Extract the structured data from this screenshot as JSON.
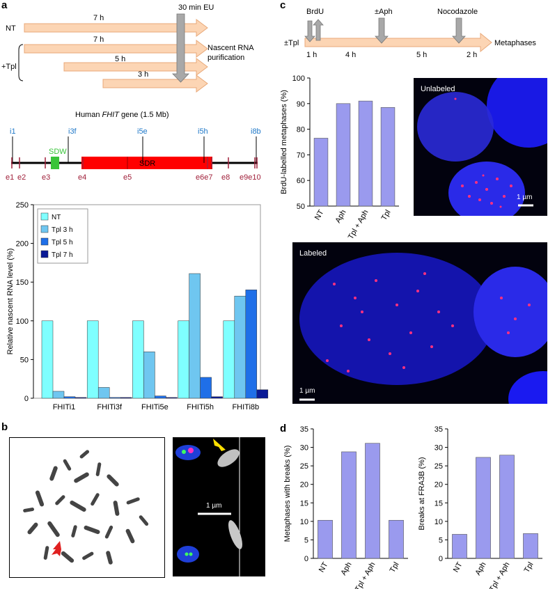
{
  "panel_labels": {
    "a": "a",
    "b": "b",
    "c": "c",
    "d": "d"
  },
  "panel_a": {
    "eu_label": "30 min EU",
    "row_labels": {
      "nt": "NT",
      "tpl": "+Tpl"
    },
    "arrow_times": [
      "7 h",
      "7 h",
      "5 h",
      "3 h"
    ],
    "purification": [
      "Nascent RNA",
      "purification"
    ],
    "gene_title_prefix": "Human ",
    "gene_title_italic": "FHIT",
    "gene_title_suffix": " gene (1.5 Mb)",
    "introns": [
      "i1",
      "i3f",
      "i5e",
      "i5h",
      "i8b"
    ],
    "exons": [
      "e1",
      "e2",
      "e3",
      "e4",
      "e5",
      "e6e7",
      "e8",
      "e9e10"
    ],
    "sdw": "SDW",
    "sdr": "SDR",
    "colors": {
      "nt": "#7fffff",
      "tpl3": "#6fc6f0",
      "tpl5": "#1f6fe8",
      "tpl7": "#0a1a96",
      "intron": "#1f78c8",
      "exon": "#a0203a",
      "sdw": "#39c43a",
      "sdr": "#ff0000"
    }
  },
  "chart_a": {
    "type": "bar",
    "ylabel": "Relative nascent  RNA level (%)",
    "ylim": [
      0,
      250
    ],
    "yticks": [
      "0",
      "50",
      "100",
      "150",
      "200",
      "250"
    ],
    "categories": [
      "FHITi1",
      "FHITi3f",
      "FHITi5e",
      "FHITi5h",
      "FHITi8b"
    ],
    "series": [
      {
        "name": "NT",
        "values": [
          100,
          100,
          100,
          100,
          100
        ]
      },
      {
        "name": "Tpl 3 h",
        "values": [
          9,
          14,
          60,
          161,
          132
        ]
      },
      {
        "name": "Tpl 5 h",
        "values": [
          2,
          1,
          3,
          27,
          140
        ]
      },
      {
        "name": "Tpl 7 h",
        "values": [
          1,
          1,
          1,
          2,
          11
        ]
      }
    ]
  },
  "panel_b": {
    "scale": "1 µm"
  },
  "panel_c": {
    "top_labels": {
      "brdu": "BrdU",
      "aph": "±Aph",
      "noco": "Nocodazole",
      "tpl": "±Tpl",
      "metaphases": "Metaphases"
    },
    "timeline_times": [
      "1 h",
      "4 h",
      "5 h",
      "2 h"
    ],
    "image_labels": {
      "unlabeled": "Unlabeled",
      "labeled": "Labeled",
      "scale_unlabeled": "1 µm",
      "scale_labeled": "1 µm"
    }
  },
  "chart_c": {
    "type": "bar",
    "ylabel": "BrdU-labelled metaphases (%)",
    "ylim": [
      50,
      100
    ],
    "yticks": [
      "50",
      "60",
      "70",
      "80",
      "90",
      "100"
    ],
    "categories": [
      "NT",
      "Aph",
      "Tpl + Aph",
      "Tpl"
    ],
    "values": [
      76.5,
      90,
      91,
      88.5
    ]
  },
  "chart_d1": {
    "type": "bar",
    "ylabel": "Metaphases with breaks (%)",
    "ylim": [
      0,
      35
    ],
    "yticks": [
      "0",
      "5",
      "10",
      "15",
      "20",
      "25",
      "30",
      "35"
    ],
    "categories": [
      "NT",
      "Aph",
      "Tpl + Aph",
      "Tpl"
    ],
    "values": [
      10.3,
      28.8,
      31.1,
      10.3
    ]
  },
  "chart_d2": {
    "type": "bar",
    "ylabel": "Breaks at FRA3B (%)",
    "ylim": [
      0,
      35
    ],
    "yticks": [
      "0",
      "5",
      "10",
      "15",
      "20",
      "25",
      "30",
      "35"
    ],
    "categories": [
      "NT",
      "Aph",
      "Tpl + Aph",
      "Tpl"
    ],
    "values": [
      6.5,
      27.3,
      27.9,
      6.7
    ]
  }
}
